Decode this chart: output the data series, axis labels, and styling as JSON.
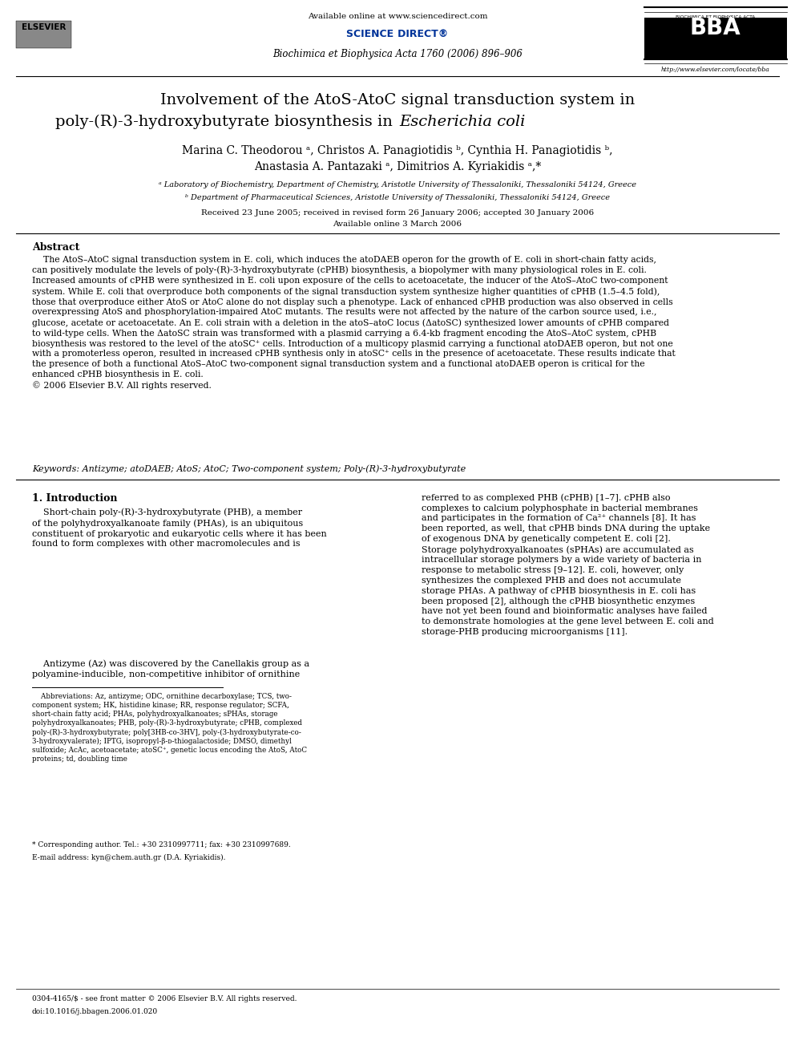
{
  "title_line1": "Involvement of the AtoS-AtoC signal transduction system in",
  "title_line2": "poly-(R)-3-hydroxybutyrate biosynthesis in ",
  "title_italic": "Escherichia coli",
  "authors": "Marina C. Theodorou ᵃ, Christos A. Panagiotidis ᵇ, Cynthia H. Panagiotidis ᵇ,",
  "authors2": "Anastasia A. Pantazaki ᵃ, Dimitrios A. Kyriakidis ᵃ,*",
  "affil_a": "ᵃ Laboratory of Biochemistry, Department of Chemistry, Aristotle University of Thessaloniki, Thessaloniki 54124, Greece",
  "affil_b": "ᵇ Department of Pharmaceutical Sciences, Aristotle University of Thessaloniki, Thessaloniki 54124, Greece",
  "received": "Received 23 June 2005; received in revised form 26 January 2006; accepted 30 January 2006",
  "available": "Available online 3 March 2006",
  "journal_header": "Biochimica et Biophysica Acta 1760 (2006) 896–906",
  "available_online": "Available online at www.sciencedirect.com",
  "url": "http://www.elsevier.com/locate/bba",
  "abstract_title": "Abstract",
  "keywords": "Keywords: Antizyme; atoDAEB; AtoS; AtoC; Two-component system; Poly-(R)-3-hydroxybutyrate",
  "intro_title": "1. Introduction",
  "footnote_star": "* Corresponding author. Tel.: +30 2310997711; fax: +30 2310997689.",
  "footnote_email": "E-mail address: kyn@chem.auth.gr (D.A. Kyriakidis).",
  "issn_text": "0304-4165/$ - see front matter © 2006 Elsevier B.V. All rights reserved.",
  "doi_text": "doi:10.1016/j.bbagen.2006.01.020",
  "bg_color": "#ffffff",
  "text_color": "#000000"
}
